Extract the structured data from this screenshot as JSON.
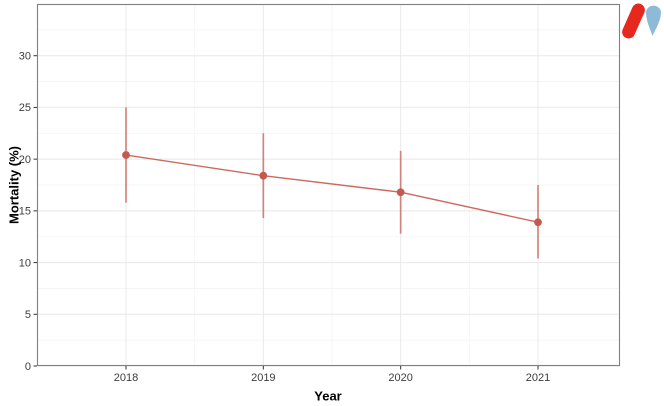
{
  "figure": {
    "x_axis_title": "Year",
    "y_axis_title": "Mortality (%)"
  },
  "chart_data": {
    "type": "line",
    "subtype": "pointrange-with-error-bars",
    "categories": [
      "2018",
      "2019",
      "2020",
      "2021"
    ],
    "series": [
      {
        "name": "Mortality",
        "values": [
          20.4,
          18.4,
          16.8,
          13.9
        ],
        "ci_low": [
          15.8,
          14.3,
          12.8,
          10.4
        ],
        "ci_high": [
          25.0,
          22.5,
          20.8,
          17.5
        ]
      }
    ],
    "title": "",
    "xlabel": "Year",
    "ylabel": "Mortality (%)",
    "ylim": [
      0,
      35
    ],
    "yticks": [
      0,
      5,
      10,
      15,
      20,
      25,
      30
    ],
    "minor_ytick_step": 2.5,
    "grid": "major+minor",
    "legend": "none",
    "point_color": "#c45a4d",
    "line_color": "#c45a4d",
    "errorbar_color": "#c45a4d",
    "errorbar_opacity": 0.72
  },
  "colors": {
    "panel_background": "#ffffff",
    "panel_border": "#808080",
    "grid_major": "#e8e8e8",
    "grid_minor": "#f3f3f3",
    "tick_mark": "#333333",
    "tick_label": "#3d3d3d",
    "axis_title": "#000000"
  },
  "logo": {
    "icon": "v-heart-brand-icon",
    "red": "#e7281e",
    "blue": "#8cbad7"
  }
}
